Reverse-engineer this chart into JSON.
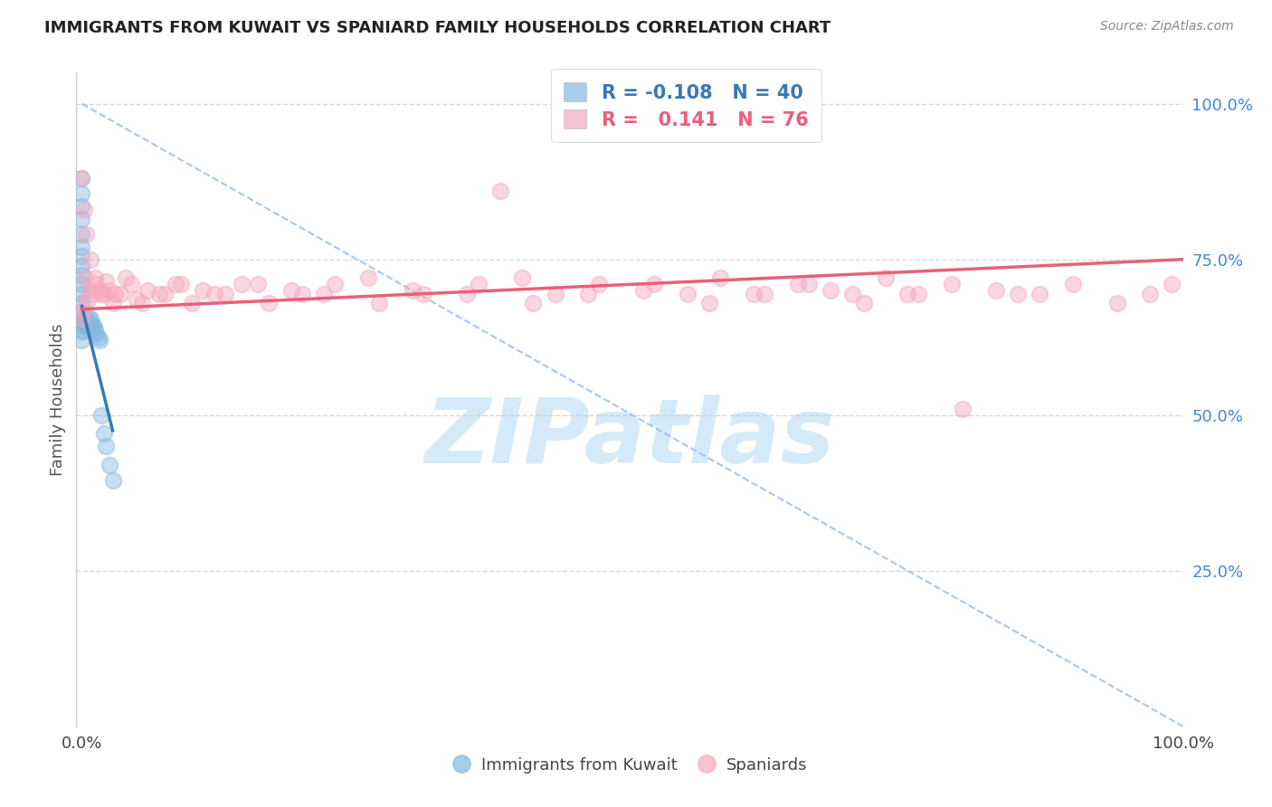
{
  "title": "IMMIGRANTS FROM KUWAIT VS SPANIARD FAMILY HOUSEHOLDS CORRELATION CHART",
  "source": "Source: ZipAtlas.com",
  "ylabel": "Family Households",
  "legend_label1": "Immigrants from Kuwait",
  "legend_label2": "Spaniards",
  "r_blue": "-0.108",
  "n_blue": "40",
  "r_pink": "0.141",
  "n_pink": "76",
  "watermark_text": "ZIPatlas",
  "blue_scatter_color": "#85b9e0",
  "pink_scatter_color": "#f5a8bc",
  "blue_line_color": "#3a78b5",
  "pink_line_color": "#e8607a",
  "dashed_line_color": "#a0c0e8",
  "grid_color": "#cccccc",
  "right_axis_color": "#4488cc",
  "background_color": "#ffffff",
  "title_color": "#222222",
  "source_color": "#888888",
  "ylabel_color": "#555555",
  "watermark_color": "#d4eaf8",
  "blue_scatter_x": [
    0.0,
    0.0,
    0.0,
    0.0,
    0.0,
    0.0,
    0.0,
    0.0,
    0.0,
    0.0,
    0.0,
    0.0,
    0.0,
    0.0,
    0.0,
    0.0,
    0.001,
    0.001,
    0.001,
    0.002,
    0.002,
    0.003,
    0.003,
    0.004,
    0.005,
    0.006,
    0.007,
    0.008,
    0.009,
    0.01,
    0.011,
    0.012,
    0.013,
    0.015,
    0.016,
    0.018,
    0.02,
    0.022,
    0.025,
    0.028
  ],
  "blue_scatter_y": [
    0.88,
    0.855,
    0.835,
    0.815,
    0.79,
    0.77,
    0.755,
    0.74,
    0.725,
    0.71,
    0.695,
    0.68,
    0.665,
    0.65,
    0.635,
    0.62,
    0.655,
    0.645,
    0.635,
    0.655,
    0.645,
    0.655,
    0.645,
    0.655,
    0.645,
    0.655,
    0.645,
    0.655,
    0.645,
    0.645,
    0.64,
    0.635,
    0.63,
    0.625,
    0.62,
    0.5,
    0.47,
    0.45,
    0.42,
    0.395
  ],
  "pink_scatter_x": [
    0.0,
    0.001,
    0.003,
    0.005,
    0.007,
    0.01,
    0.013,
    0.016,
    0.02,
    0.025,
    0.03,
    0.04,
    0.05,
    0.06,
    0.075,
    0.09,
    0.11,
    0.13,
    0.16,
    0.19,
    0.22,
    0.26,
    0.3,
    0.35,
    0.38,
    0.4,
    0.43,
    0.47,
    0.51,
    0.55,
    0.58,
    0.62,
    0.65,
    0.68,
    0.7,
    0.73,
    0.76,
    0.79,
    0.83,
    0.87,
    0.0,
    0.002,
    0.004,
    0.008,
    0.012,
    0.018,
    0.022,
    0.028,
    0.035,
    0.045,
    0.055,
    0.07,
    0.085,
    0.1,
    0.12,
    0.145,
    0.17,
    0.2,
    0.23,
    0.27,
    0.31,
    0.36,
    0.41,
    0.46,
    0.52,
    0.57,
    0.61,
    0.66,
    0.71,
    0.75,
    0.8,
    0.85,
    0.9,
    0.94,
    0.97,
    0.99
  ],
  "pink_scatter_y": [
    0.655,
    0.67,
    0.72,
    0.685,
    0.7,
    0.695,
    0.71,
    0.7,
    0.695,
    0.7,
    0.695,
    0.72,
    0.685,
    0.7,
    0.695,
    0.71,
    0.7,
    0.695,
    0.71,
    0.7,
    0.695,
    0.72,
    0.7,
    0.695,
    0.86,
    0.72,
    0.695,
    0.71,
    0.7,
    0.695,
    0.72,
    0.695,
    0.71,
    0.7,
    0.695,
    0.72,
    0.695,
    0.71,
    0.7,
    0.695,
    0.88,
    0.83,
    0.79,
    0.75,
    0.72,
    0.695,
    0.715,
    0.68,
    0.695,
    0.71,
    0.68,
    0.695,
    0.71,
    0.68,
    0.695,
    0.71,
    0.68,
    0.695,
    0.71,
    0.68,
    0.695,
    0.71,
    0.68,
    0.695,
    0.71,
    0.68,
    0.695,
    0.71,
    0.68,
    0.695,
    0.51,
    0.695,
    0.71,
    0.68,
    0.695,
    0.71
  ],
  "blue_trend_x": [
    0.0,
    0.028
  ],
  "blue_trend_y": [
    0.675,
    0.475
  ],
  "pink_trend_x": [
    0.0,
    1.0
  ],
  "pink_trend_y": [
    0.67,
    0.75
  ],
  "dash_line_x": [
    0.0,
    1.0
  ],
  "dash_line_y": [
    1.0,
    0.0
  ],
  "xlim": [
    -0.005,
    1.0
  ],
  "ylim": [
    0.0,
    1.05
  ],
  "ytick_values": [
    0.25,
    0.5,
    0.75,
    1.0
  ],
  "ytick_labels": [
    "25.0%",
    "50.0%",
    "75.0%",
    "100.0%"
  ]
}
